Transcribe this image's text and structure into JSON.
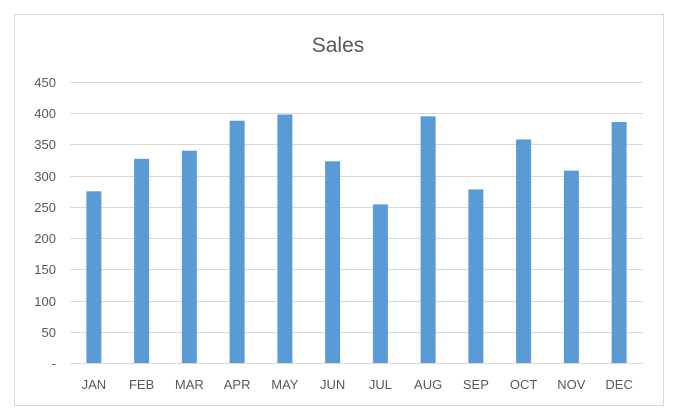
{
  "chart_data": {
    "type": "bar",
    "title": "Sales",
    "xlabel": "",
    "ylabel": "",
    "categories": [
      "JAN",
      "FEB",
      "MAR",
      "APR",
      "MAY",
      "JUN",
      "JUL",
      "AUG",
      "SEP",
      "OCT",
      "NOV",
      "DEC"
    ],
    "values": [
      275,
      327,
      340,
      388,
      398,
      323,
      254,
      395,
      278,
      358,
      308,
      386
    ],
    "ylim": [
      0,
      450
    ],
    "y_ticks": [
      0,
      50,
      100,
      150,
      200,
      250,
      300,
      350,
      400,
      450
    ],
    "y_tick_labels": [
      "-",
      "50",
      "100",
      "150",
      "200",
      "250",
      "300",
      "350",
      "400",
      "450"
    ],
    "grid": true,
    "legend": "none",
    "bar_color": "#5b9bd5"
  }
}
